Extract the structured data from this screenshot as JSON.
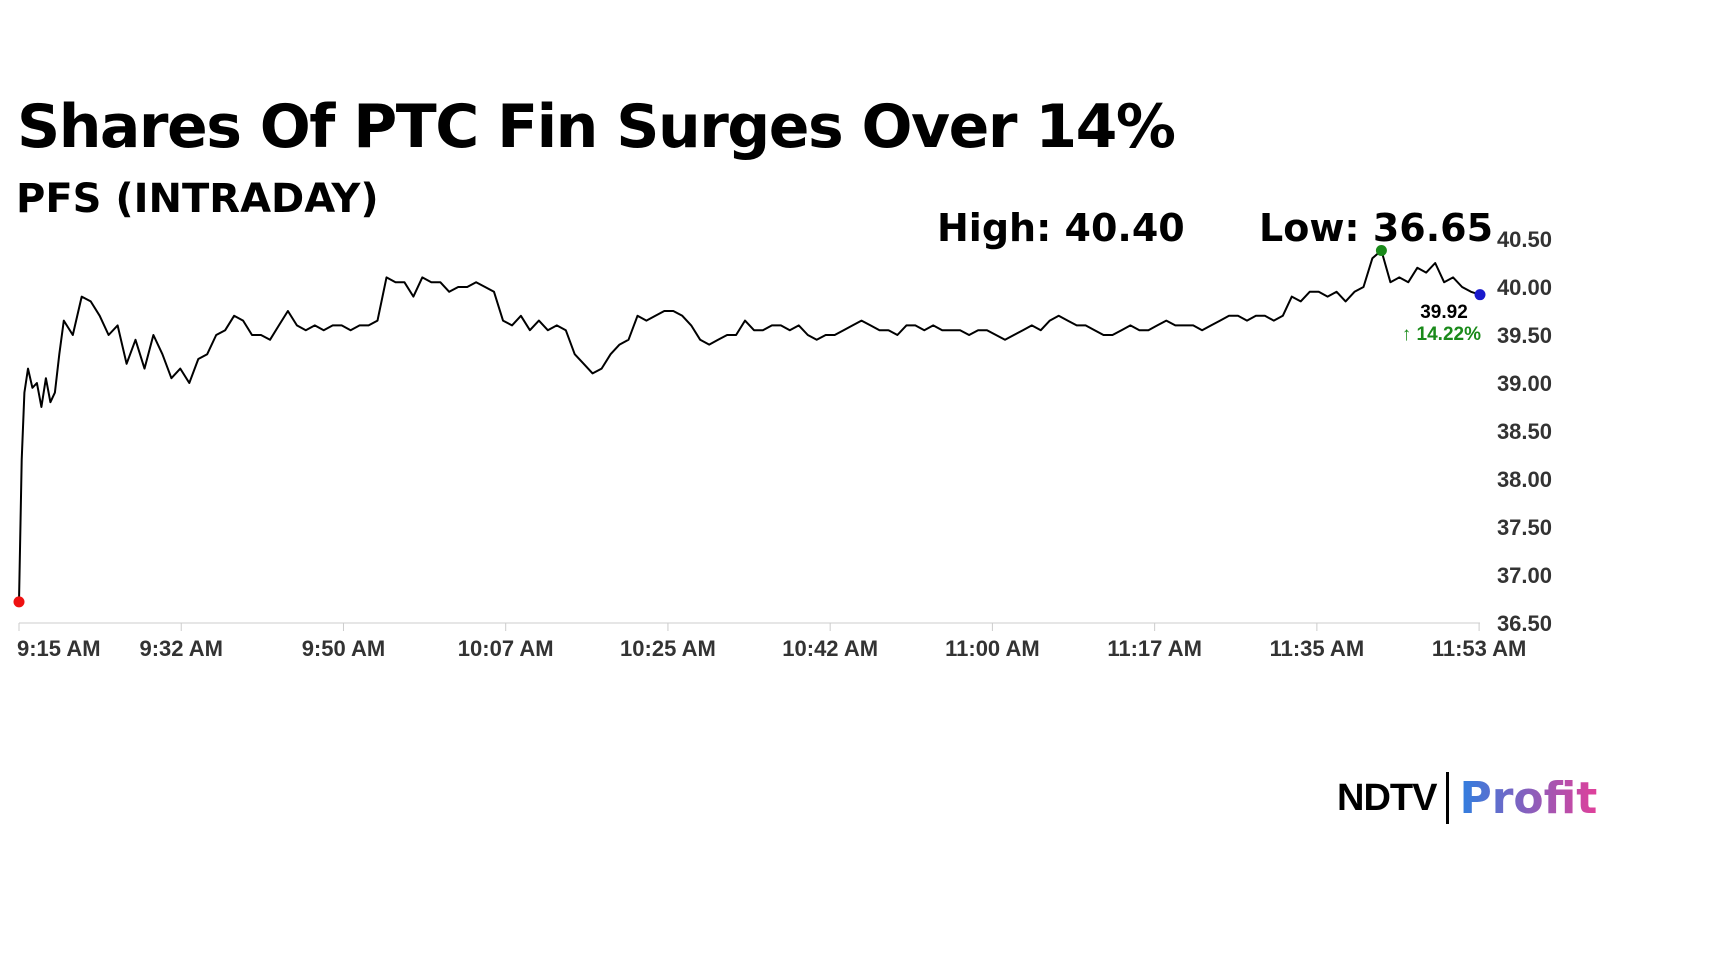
{
  "header": {
    "title": "Shares Of PTC Fin Surges Over 14%",
    "subtitle": "PFS (INTRADAY)"
  },
  "annotations": {
    "high_label": "High: 40.40",
    "low_label": "Low: 36.65",
    "last_price": "39.92",
    "change_label": "↑ 14.22%"
  },
  "colors": {
    "line": "#000000",
    "start_marker": "#ee1111",
    "high_marker": "#1a8a1a",
    "last_marker": "#1a1acc",
    "change_text": "#1a8a1a",
    "grid_axis": "#cccccc",
    "logo_profit_start": "#2f7fe0",
    "logo_profit_end": "#e0409a"
  },
  "logo": {
    "brand": "NDTV",
    "product": "Profit"
  },
  "chart_data": {
    "type": "line",
    "title": "Shares Of PTC Fin Surges Over 14%",
    "subtitle": "PFS (INTRADAY)",
    "xlabel": "",
    "ylabel": "",
    "ylim": [
      36.5,
      40.5
    ],
    "yticks": [
      "40.50",
      "40.00",
      "39.50",
      "39.00",
      "38.50",
      "38.00",
      "37.50",
      "37.00",
      "36.50"
    ],
    "xticks": [
      "9:15 AM",
      "9:32 AM",
      "9:50 AM",
      "10:07 AM",
      "10:25 AM",
      "10:42 AM",
      "11:00 AM",
      "11:17 AM",
      "11:35 AM",
      "11:53 AM"
    ],
    "x_unit": "minutes after 9:15 AM",
    "grid": false,
    "series": [
      {
        "values": [
          [
            0,
            36.72
          ],
          [
            0.3,
            38.2
          ],
          [
            0.6,
            38.9
          ],
          [
            1,
            39.15
          ],
          [
            1.5,
            38.95
          ],
          [
            2,
            39.0
          ],
          [
            2.5,
            38.75
          ],
          [
            3,
            39.05
          ],
          [
            3.5,
            38.8
          ],
          [
            4,
            38.9
          ],
          [
            4.5,
            39.3
          ],
          [
            5,
            39.65
          ],
          [
            6,
            39.5
          ],
          [
            7,
            39.9
          ],
          [
            8,
            39.85
          ],
          [
            9,
            39.7
          ],
          [
            10,
            39.5
          ],
          [
            11,
            39.6
          ],
          [
            12,
            39.2
          ],
          [
            13,
            39.45
          ],
          [
            14,
            39.15
          ],
          [
            15,
            39.5
          ],
          [
            16,
            39.3
          ],
          [
            17,
            39.05
          ],
          [
            18,
            39.15
          ],
          [
            19,
            39.0
          ],
          [
            20,
            39.25
          ],
          [
            21,
            39.3
          ],
          [
            22,
            39.5
          ],
          [
            23,
            39.55
          ],
          [
            24,
            39.7
          ],
          [
            25,
            39.65
          ],
          [
            26,
            39.5
          ],
          [
            27,
            39.5
          ],
          [
            28,
            39.45
          ],
          [
            29,
            39.6
          ],
          [
            30,
            39.75
          ],
          [
            31,
            39.6
          ],
          [
            32,
            39.55
          ],
          [
            33,
            39.6
          ],
          [
            34,
            39.55
          ],
          [
            35,
            39.6
          ],
          [
            36,
            39.6
          ],
          [
            37,
            39.55
          ],
          [
            38,
            39.6
          ],
          [
            39,
            39.6
          ],
          [
            40,
            39.65
          ],
          [
            41,
            40.1
          ],
          [
            42,
            40.05
          ],
          [
            43,
            40.05
          ],
          [
            44,
            39.9
          ],
          [
            45,
            40.1
          ],
          [
            46,
            40.05
          ],
          [
            47,
            40.05
          ],
          [
            48,
            39.95
          ],
          [
            49,
            40.0
          ],
          [
            50,
            40.0
          ],
          [
            51,
            40.05
          ],
          [
            52,
            40.0
          ],
          [
            53,
            39.95
          ],
          [
            54,
            39.65
          ],
          [
            55,
            39.6
          ],
          [
            56,
            39.7
          ],
          [
            57,
            39.55
          ],
          [
            58,
            39.65
          ],
          [
            59,
            39.55
          ],
          [
            60,
            39.6
          ],
          [
            61,
            39.55
          ],
          [
            62,
            39.3
          ],
          [
            63,
            39.2
          ],
          [
            64,
            39.1
          ],
          [
            65,
            39.15
          ],
          [
            66,
            39.3
          ],
          [
            67,
            39.4
          ],
          [
            68,
            39.45
          ],
          [
            69,
            39.7
          ],
          [
            70,
            39.65
          ],
          [
            71,
            39.7
          ],
          [
            72,
            39.75
          ],
          [
            73,
            39.75
          ],
          [
            74,
            39.7
          ],
          [
            75,
            39.6
          ],
          [
            76,
            39.45
          ],
          [
            77,
            39.4
          ],
          [
            78,
            39.45
          ],
          [
            79,
            39.5
          ],
          [
            80,
            39.5
          ],
          [
            81,
            39.65
          ],
          [
            82,
            39.55
          ],
          [
            83,
            39.55
          ],
          [
            84,
            39.6
          ],
          [
            85,
            39.6
          ],
          [
            86,
            39.55
          ],
          [
            87,
            39.6
          ],
          [
            88,
            39.5
          ],
          [
            89,
            39.45
          ],
          [
            90,
            39.5
          ],
          [
            91,
            39.5
          ],
          [
            92,
            39.55
          ],
          [
            93,
            39.6
          ],
          [
            94,
            39.65
          ],
          [
            95,
            39.6
          ],
          [
            96,
            39.55
          ],
          [
            97,
            39.55
          ],
          [
            98,
            39.5
          ],
          [
            99,
            39.6
          ],
          [
            100,
            39.6
          ],
          [
            101,
            39.55
          ],
          [
            102,
            39.6
          ],
          [
            103,
            39.55
          ],
          [
            104,
            39.55
          ],
          [
            105,
            39.55
          ],
          [
            106,
            39.5
          ],
          [
            107,
            39.55
          ],
          [
            108,
            39.55
          ],
          [
            109,
            39.5
          ],
          [
            110,
            39.45
          ],
          [
            111,
            39.5
          ],
          [
            112,
            39.55
          ],
          [
            113,
            39.6
          ],
          [
            114,
            39.55
          ],
          [
            115,
            39.65
          ],
          [
            116,
            39.7
          ],
          [
            117,
            39.65
          ],
          [
            118,
            39.6
          ],
          [
            119,
            39.6
          ],
          [
            120,
            39.55
          ],
          [
            121,
            39.5
          ],
          [
            122,
            39.5
          ],
          [
            123,
            39.55
          ],
          [
            124,
            39.6
          ],
          [
            125,
            39.55
          ],
          [
            126,
            39.55
          ],
          [
            127,
            39.6
          ],
          [
            128,
            39.65
          ],
          [
            129,
            39.6
          ],
          [
            130,
            39.6
          ],
          [
            131,
            39.6
          ],
          [
            132,
            39.55
          ],
          [
            133,
            39.6
          ],
          [
            134,
            39.65
          ],
          [
            135,
            39.7
          ],
          [
            136,
            39.7
          ],
          [
            137,
            39.65
          ],
          [
            138,
            39.7
          ],
          [
            139,
            39.7
          ],
          [
            140,
            39.65
          ],
          [
            141,
            39.7
          ],
          [
            142,
            39.9
          ],
          [
            143,
            39.85
          ],
          [
            144,
            39.95
          ],
          [
            145,
            39.95
          ],
          [
            146,
            39.9
          ],
          [
            147,
            39.95
          ],
          [
            148,
            39.85
          ],
          [
            149,
            39.95
          ],
          [
            150,
            40.0
          ],
          [
            151,
            40.3
          ],
          [
            152,
            40.38
          ],
          [
            153,
            40.05
          ],
          [
            154,
            40.1
          ],
          [
            155,
            40.05
          ],
          [
            156,
            40.2
          ],
          [
            157,
            40.15
          ],
          [
            158,
            40.25
          ],
          [
            159,
            40.05
          ],
          [
            160,
            40.1
          ],
          [
            161,
            40.0
          ],
          [
            162,
            39.95
          ],
          [
            163,
            39.92
          ]
        ]
      }
    ],
    "markers": [
      {
        "label": "open",
        "x": 0,
        "y": 36.72,
        "color_key": "start_marker"
      },
      {
        "label": "high",
        "x": 152,
        "y": 40.38,
        "color_key": "high_marker"
      },
      {
        "label": "last",
        "x": 163,
        "y": 39.92,
        "color_key": "last_marker"
      }
    ]
  }
}
